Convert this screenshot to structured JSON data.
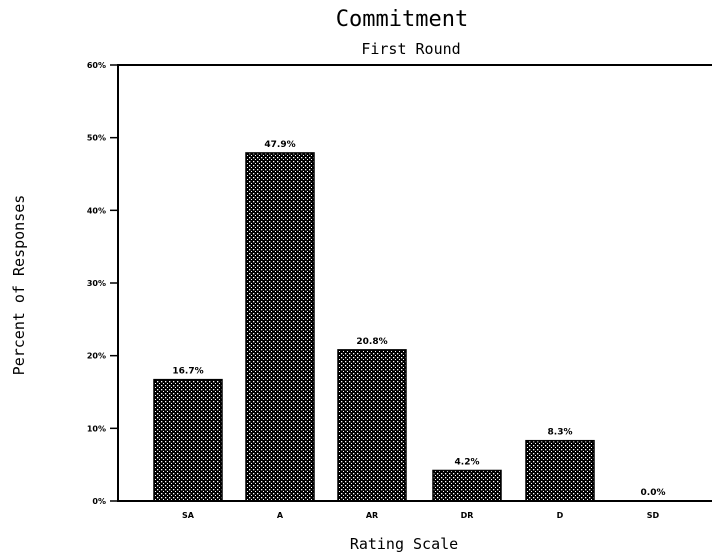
{
  "chart_data": {
    "type": "bar",
    "title": "Commitment",
    "subtitle": "First Round",
    "xlabel": "Rating Scale",
    "ylabel": "Percent of Responses",
    "categories": [
      "SA",
      "A",
      "AR",
      "DR",
      "D",
      "SD"
    ],
    "values": [
      16.7,
      47.9,
      20.8,
      4.2,
      8.3,
      0.0
    ],
    "value_labels": [
      "16.7%",
      "47.9%",
      "20.8%",
      "4.2%",
      "8.3%",
      "0.0%"
    ],
    "ylim": [
      0,
      60
    ],
    "yticks": [
      0,
      10,
      20,
      30,
      40,
      50,
      60
    ],
    "ytick_labels": [
      "0%",
      "10%",
      "20%",
      "30%",
      "40%",
      "50%",
      "60%"
    ],
    "grid": false,
    "legend": "none",
    "bar_pattern": "crosshatch",
    "colors": {
      "bar_fill": "#000000",
      "background": "#ffffff"
    }
  }
}
